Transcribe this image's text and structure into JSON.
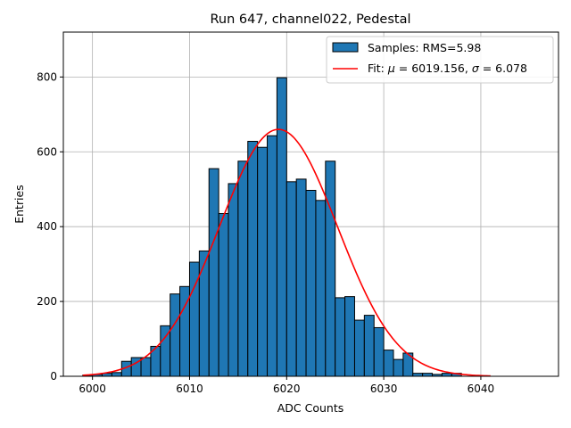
{
  "chart_data": {
    "type": "bar",
    "title": "Run 647, channel022, Pedestal",
    "xlabel": "ADC Counts",
    "ylabel": "Entries",
    "xlim": [
      5997,
      6048
    ],
    "ylim": [
      0,
      920
    ],
    "xticks": [
      6000,
      6010,
      6020,
      6030,
      6040
    ],
    "yticks": [
      0,
      200,
      400,
      600,
      800
    ],
    "grid": true,
    "legend_position": "top-right",
    "colors": {
      "bars": "#1f77b4",
      "bar_edge": "#000000",
      "fit": "#ff0000",
      "grid": "#b0b0b0"
    },
    "histogram": {
      "name": "Samples: RMS=5.98",
      "bin_edges_start": 5999,
      "bin_width": 1,
      "counts": [
        3,
        5,
        8,
        10,
        40,
        50,
        50,
        80,
        135,
        220,
        240,
        305,
        335,
        555,
        435,
        515,
        575,
        628,
        612,
        643,
        798,
        520,
        527,
        497,
        470,
        575,
        210,
        213,
        150,
        163,
        130,
        70,
        45,
        62,
        8,
        8,
        5,
        8,
        8
      ]
    },
    "fit": {
      "name": "Fit: $\\mu$ = 6019.156, $\\sigma$ = 6.078",
      "mu": 6019.156,
      "sigma": 6.078,
      "amplitude": 660,
      "x_range": [
        5999,
        6041
      ]
    },
    "legend": {
      "histogram_label_prefix": "Samples: ",
      "histogram_label_value": "RMS=5.98",
      "fit_label_prefix": "Fit: ",
      "fit_mu_symbol": "μ",
      "fit_mu_value": " = 6019.156, ",
      "fit_sigma_symbol": "σ",
      "fit_sigma_value": " = 6.078"
    }
  }
}
